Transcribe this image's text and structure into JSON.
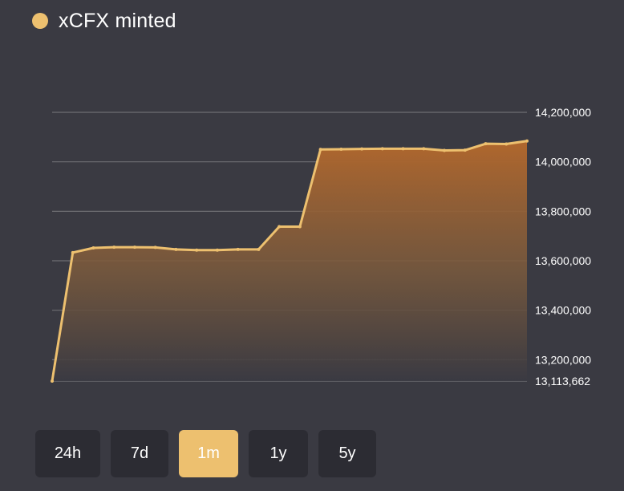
{
  "legend": {
    "label": "xCFX minted",
    "color": "#edc06f"
  },
  "colors": {
    "background": "#3a3a42",
    "line": "#edc06f",
    "grid": "#6e6e73",
    "button_bg": "#2c2c33",
    "button_active_bg": "#edc06f"
  },
  "range_buttons": [
    {
      "label": "24h",
      "active": false
    },
    {
      "label": "7d",
      "active": false
    },
    {
      "label": "1m",
      "active": true
    },
    {
      "label": "1y",
      "active": false
    },
    {
      "label": "5y",
      "active": false
    }
  ],
  "chart_data": {
    "type": "area",
    "title": "",
    "xlabel": "",
    "ylabel": "",
    "ylim": [
      13113662,
      14200000
    ],
    "y_ticks": [
      13113662,
      13200000,
      13400000,
      13600000,
      13800000,
      14000000,
      14200000
    ],
    "y_tick_labels": [
      "13,113,662",
      "13,200,000",
      "13,400,000",
      "13,600,000",
      "13,800,000",
      "14,000,000",
      "14,200,000"
    ],
    "y_axis_position": "right",
    "grid": true,
    "series": [
      {
        "values": [
          13113662,
          13633000,
          13652000,
          13655000,
          13655000,
          13654000,
          13646000,
          13643000,
          13643000,
          13646000,
          13646000,
          13738000,
          13738000,
          14050000,
          14051000,
          14052000,
          14053000,
          14053000,
          14053000,
          14046000,
          14047000,
          14073000,
          14072000,
          14084000
        ]
      }
    ]
  }
}
